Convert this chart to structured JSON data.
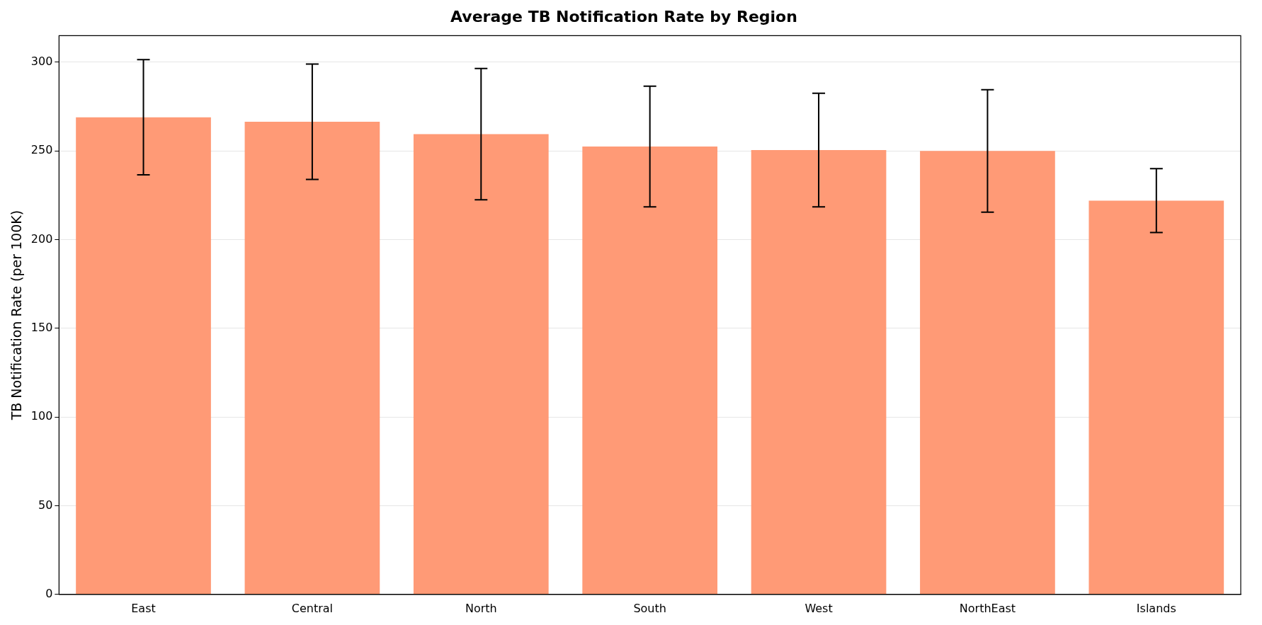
{
  "chart_data": {
    "type": "bar",
    "title": "Average TB Notification Rate by Region",
    "ylabel": "TB Notification Rate (per 100K)",
    "categories": [
      "East",
      "Central",
      "North",
      "South",
      "West",
      "NorthEast",
      "Islands"
    ],
    "values": [
      269,
      266.5,
      259.5,
      252.5,
      250.5,
      250,
      222
    ],
    "errors": [
      32.5,
      32.5,
      37,
      34,
      32,
      34.5,
      18
    ],
    "color": "#ff9a76",
    "ylim": [
      0,
      315
    ],
    "yticks": [
      0,
      50,
      100,
      150,
      200,
      250,
      300
    ],
    "grid": "y"
  }
}
